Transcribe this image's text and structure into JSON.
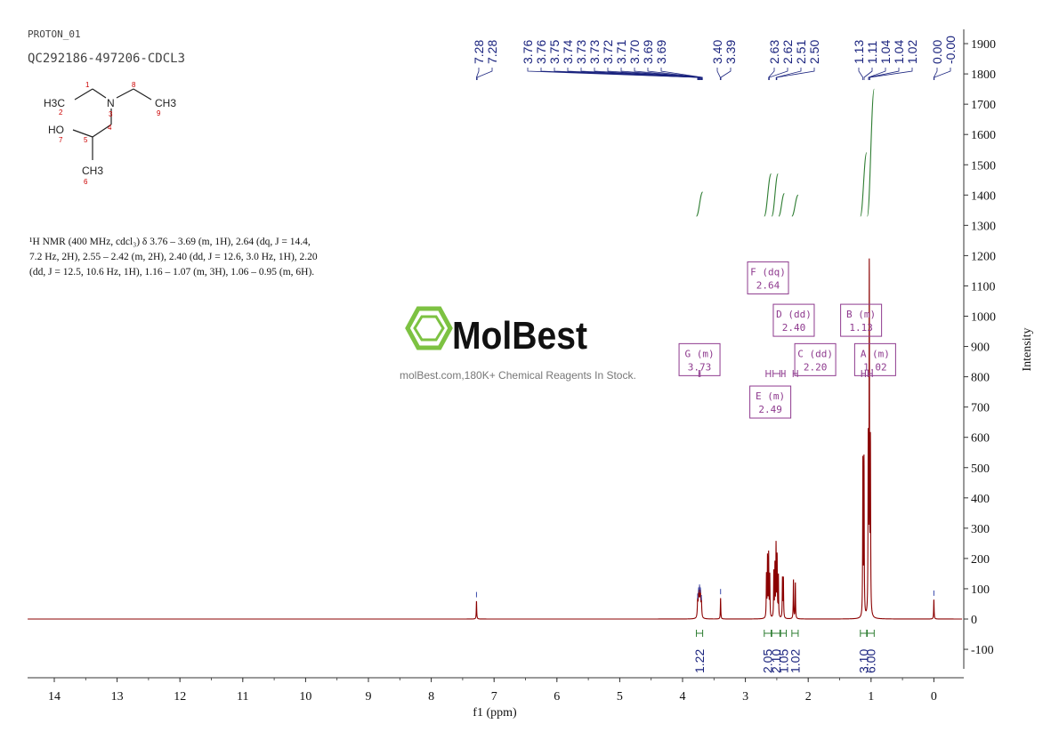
{
  "header": {
    "file_name": "PROTON_01",
    "sample_id": "QC292186-497206-CDCL3"
  },
  "structure": {
    "labels": [
      "H3C",
      "N",
      "CH3",
      "HO",
      "CH3"
    ],
    "atom_numbers": [
      "1",
      "2",
      "3",
      "4",
      "5",
      "6",
      "7",
      "8",
      "9"
    ]
  },
  "description": {
    "line1": "¹H NMR (400 MHz, cdcl₃) δ 3.76 – 3.69 (m, 1H), 2.64 (dq, J = 14.4,",
    "line2": "7.2 Hz, 2H), 2.55 – 2.42 (m, 2H), 2.40 (dd, J = 12.6, 3.0 Hz, 1H), 2.20",
    "line3": "(dd, J = 12.5, 10.6 Hz, 1H), 1.16 – 1.07 (m, 3H), 1.06 – 0.95 (m, 6H)."
  },
  "watermark": {
    "brand": "MolBest",
    "tagline": "molBest.com,180K+ Chemical Reagents In Stock."
  },
  "colors": {
    "spectrum": "#8b0000",
    "peak_labels": "#1a237e",
    "integral": "#2e7d32",
    "multiplet_box": "#8e3a8e",
    "axis": "#333333",
    "logo_green": "#7dc242"
  },
  "chart_data": {
    "type": "line",
    "xlabel": "f1 (ppm)",
    "ylabel": "Intensity",
    "xlim": [
      14.5,
      -0.45
    ],
    "ylim": [
      -190,
      1920
    ],
    "x_reversed": true,
    "x_ticks": [
      14,
      13,
      12,
      11,
      10,
      9,
      8,
      7,
      6,
      5,
      4,
      3,
      2,
      1,
      0
    ],
    "y_ticks": [
      -100,
      0,
      100,
      200,
      300,
      400,
      500,
      600,
      700,
      800,
      900,
      1000,
      1100,
      1200,
      1300,
      1400,
      1500,
      1600,
      1700,
      1800,
      1900
    ],
    "peak_labels": [
      {
        "label": "7.28",
        "ppm": 7.28
      },
      {
        "label": "7.28",
        "ppm": 7.27
      },
      {
        "label": "3.76",
        "ppm": 3.76
      },
      {
        "label": "3.76",
        "ppm": 3.755
      },
      {
        "label": "3.75",
        "ppm": 3.75
      },
      {
        "label": "3.74",
        "ppm": 3.74
      },
      {
        "label": "3.73",
        "ppm": 3.73
      },
      {
        "label": "3.73",
        "ppm": 3.725
      },
      {
        "label": "3.72",
        "ppm": 3.72
      },
      {
        "label": "3.71",
        "ppm": 3.71
      },
      {
        "label": "3.70",
        "ppm": 3.7
      },
      {
        "label": "3.69",
        "ppm": 3.69
      },
      {
        "label": "3.69",
        "ppm": 3.685
      },
      {
        "label": "3.40",
        "ppm": 3.4
      },
      {
        "label": "3.39",
        "ppm": 3.39
      },
      {
        "label": "2.63",
        "ppm": 2.63
      },
      {
        "label": "2.62",
        "ppm": 2.62
      },
      {
        "label": "2.51",
        "ppm": 2.51
      },
      {
        "label": "2.50",
        "ppm": 2.5
      },
      {
        "label": "1.13",
        "ppm": 1.13
      },
      {
        "label": "1.11",
        "ppm": 1.11
      },
      {
        "label": "1.04",
        "ppm": 1.04
      },
      {
        "label": "1.04",
        "ppm": 1.035
      },
      {
        "label": "1.02",
        "ppm": 1.02
      },
      {
        "label": "0.00",
        "ppm": 0.0
      },
      {
        "label": "-0.00",
        "ppm": -0.005
      }
    ],
    "spectrum_peaks": [
      {
        "ppm": 7.28,
        "height": 60,
        "width": 0.004
      },
      {
        "ppm": 3.76,
        "height": 55,
        "width": 0.006
      },
      {
        "ppm": 3.745,
        "height": 75,
        "width": 0.006
      },
      {
        "ppm": 3.73,
        "height": 85,
        "width": 0.006
      },
      {
        "ppm": 3.715,
        "height": 75,
        "width": 0.006
      },
      {
        "ppm": 3.7,
        "height": 50,
        "width": 0.006
      },
      {
        "ppm": 3.395,
        "height": 70,
        "width": 0.004
      },
      {
        "ppm": 2.665,
        "height": 140,
        "width": 0.004
      },
      {
        "ppm": 2.648,
        "height": 200,
        "width": 0.004
      },
      {
        "ppm": 2.63,
        "height": 210,
        "width": 0.004
      },
      {
        "ppm": 2.612,
        "height": 140,
        "width": 0.004
      },
      {
        "ppm": 2.548,
        "height": 150,
        "width": 0.004
      },
      {
        "ppm": 2.53,
        "height": 170,
        "width": 0.004
      },
      {
        "ppm": 2.512,
        "height": 235,
        "width": 0.004
      },
      {
        "ppm": 2.495,
        "height": 200,
        "width": 0.004
      },
      {
        "ppm": 2.475,
        "height": 140,
        "width": 0.004
      },
      {
        "ppm": 2.41,
        "height": 130,
        "width": 0.004
      },
      {
        "ppm": 2.395,
        "height": 130,
        "width": 0.004
      },
      {
        "ppm": 2.235,
        "height": 130,
        "width": 0.004
      },
      {
        "ppm": 2.205,
        "height": 120,
        "width": 0.004
      },
      {
        "ppm": 1.13,
        "height": 520,
        "width": 0.004
      },
      {
        "ppm": 1.112,
        "height": 520,
        "width": 0.004
      },
      {
        "ppm": 1.045,
        "height": 560,
        "width": 0.004
      },
      {
        "ppm": 1.028,
        "height": 1150,
        "width": 0.004
      },
      {
        "ppm": 1.01,
        "height": 560,
        "width": 0.004
      },
      {
        "ppm": 0.0,
        "height": 65,
        "width": 0.004
      }
    ],
    "integrals": [
      {
        "value": "1.22",
        "from": 3.78,
        "to": 3.68
      },
      {
        "value": "2.05",
        "from": 2.7,
        "to": 2.59
      },
      {
        "value": "2.10",
        "from": 2.58,
        "to": 2.45
      },
      {
        "value": "1.05",
        "from": 2.44,
        "to": 2.35
      },
      {
        "value": "1.02",
        "from": 2.26,
        "to": 2.16
      },
      {
        "value": "3.10",
        "from": 1.17,
        "to": 1.07
      },
      {
        "value": "6.00",
        "from": 1.06,
        "to": 0.95
      }
    ],
    "multiplets": [
      {
        "id": "G",
        "mult": "m",
        "shift": "3.73",
        "ppm": 3.73,
        "box_y": 880
      },
      {
        "id": "F",
        "mult": "dq",
        "shift": "2.64",
        "ppm": 2.64,
        "box_y": 1150
      },
      {
        "id": "D",
        "mult": "dd",
        "shift": "2.40",
        "ppm": 2.4,
        "box_y": 1010
      },
      {
        "id": "C",
        "mult": "dd",
        "shift": "2.20",
        "ppm": 2.2,
        "box_y": 880
      },
      {
        "id": "E",
        "mult": "m",
        "shift": "2.49",
        "ppm": 2.49,
        "box_y": 740
      },
      {
        "id": "B",
        "mult": "m",
        "shift": "1.13",
        "ppm": 1.13,
        "box_y": 1010
      },
      {
        "id": "A",
        "mult": "m",
        "shift": "1.02",
        "ppm": 1.02,
        "box_y": 880
      }
    ],
    "integral_curves": [
      {
        "from": 3.78,
        "to": 3.68,
        "base": 1330,
        "rise": 80
      },
      {
        "from": 2.7,
        "to": 2.59,
        "base": 1330,
        "rise": 140
      },
      {
        "from": 2.58,
        "to": 2.48,
        "base": 1330,
        "rise": 140
      },
      {
        "from": 2.47,
        "to": 2.38,
        "base": 1330,
        "rise": 75
      },
      {
        "from": 2.26,
        "to": 2.16,
        "base": 1330,
        "rise": 70
      },
      {
        "from": 1.17,
        "to": 1.07,
        "base": 1330,
        "rise": 210
      },
      {
        "from": 1.06,
        "to": 0.95,
        "base": 1330,
        "rise": 420
      }
    ]
  }
}
